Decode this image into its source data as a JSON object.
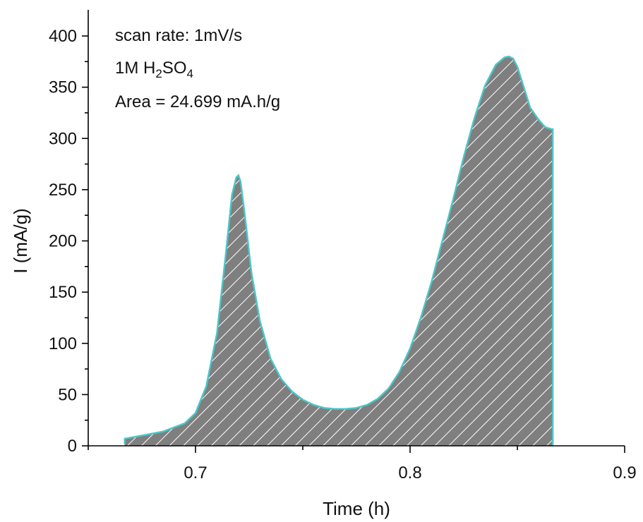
{
  "chart_data": {
    "type": "area",
    "title": "",
    "xlabel": "Time (h)",
    "ylabel": "I (mA/g)",
    "xlim": [
      0.65,
      0.9
    ],
    "ylim": [
      0,
      420
    ],
    "x_ticks": [
      0.7,
      0.8,
      0.9
    ],
    "x_tick_labels": [
      "0.7",
      "0.8",
      "0.9"
    ],
    "y_ticks": [
      0,
      50,
      100,
      150,
      200,
      250,
      300,
      350,
      400
    ],
    "y_tick_labels": [
      "0",
      "50",
      "100",
      "150",
      "200",
      "250",
      "300",
      "350",
      "400"
    ],
    "grid": false,
    "annotations": {
      "scan_rate": "scan rate: 1mV/s",
      "electrolyte_prefix": "1M H",
      "electrolyte_sub1": "2",
      "electrolyte_mid": "SO",
      "electrolyte_sub2": "4",
      "area": "Area = 24.699 mA.h/g"
    },
    "colors": {
      "line": "#4cc6c6",
      "fill": "#7f7f7f",
      "hatch": "#ffffff"
    },
    "series": [
      {
        "x": [
          0.667,
          0.675,
          0.685,
          0.695,
          0.7,
          0.705,
          0.71,
          0.714,
          0.717,
          0.719,
          0.72,
          0.721,
          0.723,
          0.726,
          0.73,
          0.735,
          0.74,
          0.745,
          0.75,
          0.755,
          0.76,
          0.765,
          0.77,
          0.775,
          0.78,
          0.785,
          0.79,
          0.795,
          0.8,
          0.805,
          0.81,
          0.815,
          0.82,
          0.825,
          0.83,
          0.835,
          0.84,
          0.844,
          0.846,
          0.848,
          0.85,
          0.853,
          0.856,
          0.86,
          0.863,
          0.866,
          0.8665
        ],
        "y": [
          7,
          10,
          14,
          22,
          32,
          58,
          110,
          185,
          245,
          262,
          264,
          258,
          225,
          170,
          122,
          85,
          65,
          53,
          45,
          40,
          37,
          36,
          36,
          37,
          40,
          46,
          56,
          72,
          95,
          125,
          160,
          200,
          240,
          282,
          320,
          352,
          372,
          379,
          380,
          378,
          370,
          350,
          330,
          318,
          311,
          309,
          309
        ]
      }
    ]
  }
}
